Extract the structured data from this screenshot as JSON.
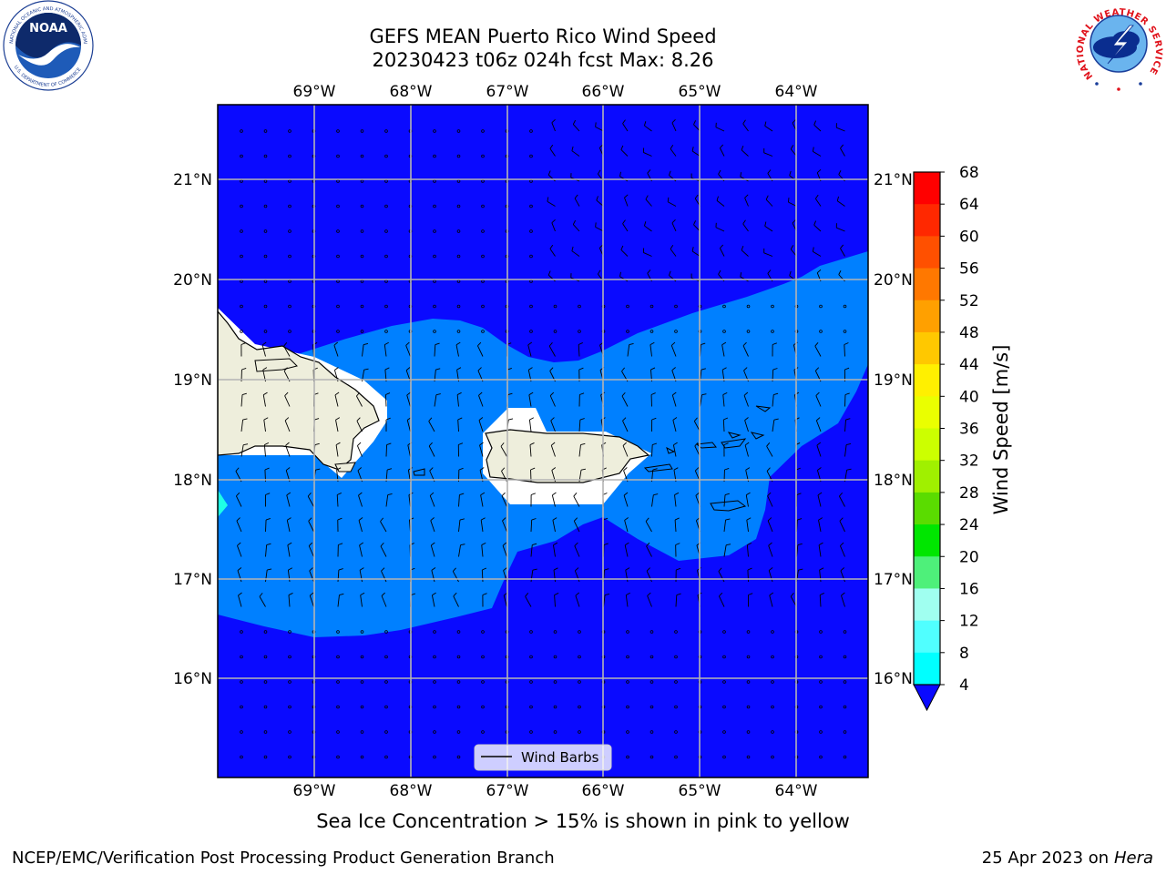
{
  "title": {
    "line1": "GEFS MEAN Puerto Rico Wind Speed",
    "line2": "20230423 t06z 024h fcst   Max: 8.26"
  },
  "caption": "Sea Ice Concentration > 15% is shown in pink to yellow",
  "footer": {
    "left": "NCEP/EMC/Verification Post Processing Product Generation Branch",
    "right_prefix": "25 Apr 2023 on ",
    "right_machine": "Hera"
  },
  "logos": {
    "noaa_text": "NOAA",
    "noaa_ring_top": "NATIONAL OCEANIC AND ATMOSPHERIC ADMINISTRATION",
    "noaa_ring_bottom": "U.S. DEPARTMENT OF COMMERCE",
    "nws_ring": "NATIONAL WEATHER SERVICE"
  },
  "map": {
    "lon_labels": [
      "69°W",
      "68°W",
      "67°W",
      "66°W",
      "65°W",
      "64°W"
    ],
    "lat_labels": [
      "21°N",
      "20°N",
      "19°N",
      "18°N",
      "17°N",
      "16°N"
    ],
    "legend_label": "Wind Barbs"
  },
  "colorbar": {
    "label": "Wind Speed [m/s]",
    "ticks": [
      "68",
      "64",
      "60",
      "56",
      "52",
      "48",
      "44",
      "40",
      "36",
      "32",
      "28",
      "24",
      "20",
      "16",
      "12",
      "8",
      "4"
    ],
    "colors": [
      "#ff0000",
      "#ff2800",
      "#ff5000",
      "#ff7800",
      "#ffa000",
      "#ffc800",
      "#fff000",
      "#eaff00",
      "#ccff00",
      "#a0f000",
      "#5adc00",
      "#00e600",
      "#4ef07a",
      "#a0fff0",
      "#50ffff",
      "#00ffff",
      "#00ced1",
      "#007fff"
    ],
    "under_color": "#0a0aff"
  },
  "field_colors": {
    "land": "#eeeedc",
    "band_4_8": "#0080ff",
    "below_4": "#0a0aff",
    "band_8_12": "#1effe6"
  }
}
